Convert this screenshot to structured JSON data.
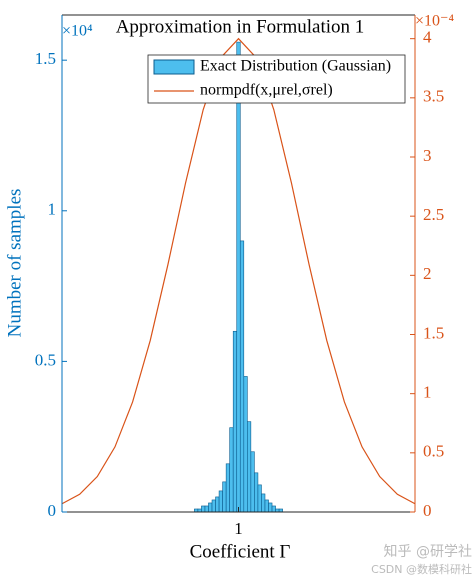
{
  "chart_data": {
    "type": "histogram",
    "title": "Approximation in Formulation 1",
    "xlabel": "Coefficient Γ",
    "ylabel": "Number of samples",
    "y_exponent": "×10⁴",
    "y2_exponent": "×10⁻⁴",
    "xlim": [
      0,
      2
    ],
    "xticks": [
      1
    ],
    "ylim": [
      0,
      1.65
    ],
    "yticks": [
      0,
      0.5,
      1,
      1.5
    ],
    "y2lim": [
      0,
      4.2
    ],
    "y2ticks": [
      0,
      0.5,
      1,
      1.5,
      2,
      2.5,
      3,
      3.5,
      4
    ],
    "y_color": "#0072BD",
    "y2_color": "#D95319",
    "legend": "top-right",
    "series": [
      {
        "name": "Exact Distribution (Gaussian)",
        "type": "histogram",
        "color": "#4DBEEE",
        "edge_color": "#0B5C8E",
        "bins": [
          0.75,
          0.77,
          0.79,
          0.81,
          0.83,
          0.85,
          0.87,
          0.89,
          0.91,
          0.93,
          0.95,
          0.97,
          0.99,
          1.01,
          1.03,
          1.05,
          1.07,
          1.09,
          1.11,
          1.13,
          1.15,
          1.17,
          1.19,
          1.21,
          1.23,
          1.25
        ],
        "values": [
          0.01,
          0.01,
          0.02,
          0.02,
          0.03,
          0.04,
          0.05,
          0.07,
          0.1,
          0.16,
          0.28,
          0.6,
          1.56,
          0.9,
          0.45,
          0.3,
          0.2,
          0.13,
          0.09,
          0.06,
          0.04,
          0.03,
          0.02,
          0.01,
          0.01
        ]
      },
      {
        "name": "normpdf(x,μrel,σrel)",
        "type": "line",
        "axis": "y2",
        "color": "#D95319",
        "x": [
          0,
          0.1,
          0.2,
          0.3,
          0.4,
          0.5,
          0.6,
          0.7,
          0.8,
          0.9,
          1,
          1.1,
          1.2,
          1.3,
          1.4,
          1.5,
          1.6,
          1.7,
          1.8,
          1.9,
          2
        ],
        "values": [
          0.07,
          0.15,
          0.3,
          0.55,
          0.93,
          1.45,
          2.09,
          2.78,
          3.4,
          3.84,
          4,
          3.84,
          3.4,
          2.78,
          2.09,
          1.45,
          0.93,
          0.55,
          0.3,
          0.15,
          0.07
        ]
      }
    ]
  },
  "watermark": {
    "line1": "知乎 @研学社",
    "line2": "CSDN @数模科研社"
  }
}
